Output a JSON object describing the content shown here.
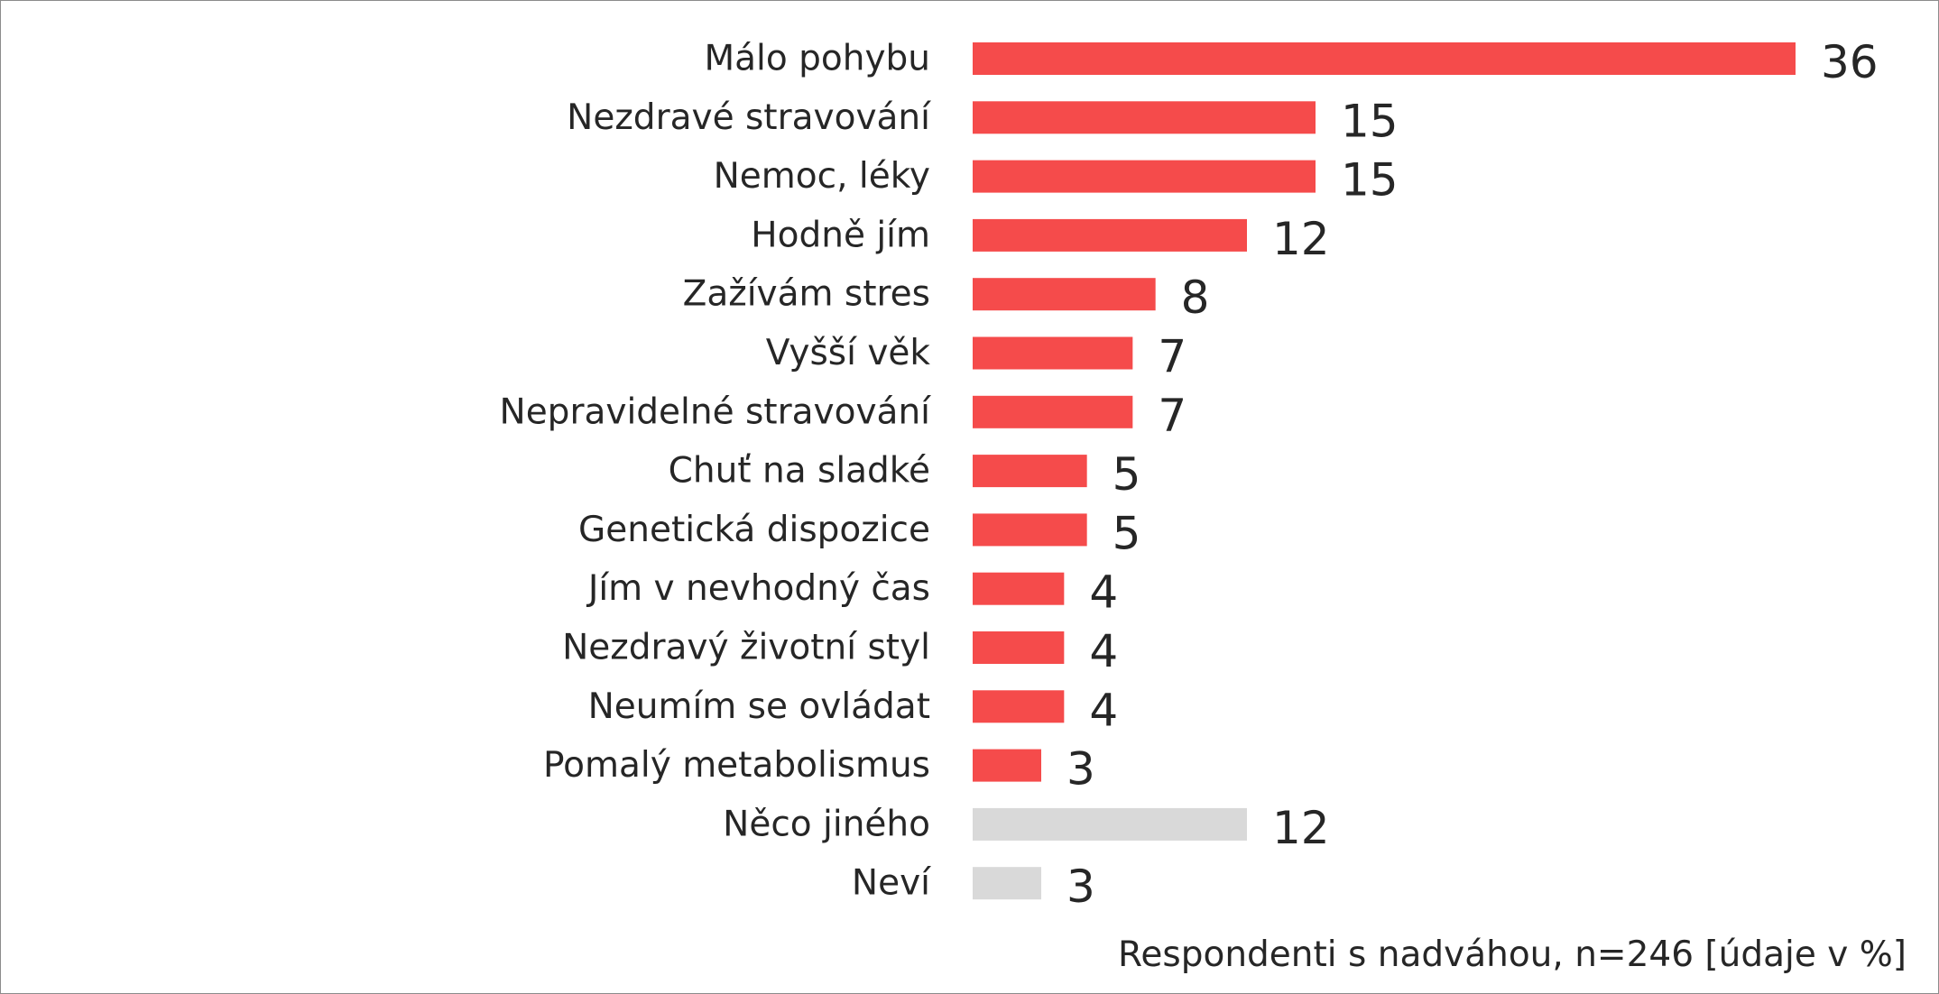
{
  "chart_data": {
    "type": "bar",
    "orientation": "horizontal",
    "categories": [
      "Málo pohybu",
      "Nezdravé stravování",
      "Nemoc, léky",
      "Hodně jím",
      "Zažívám stres",
      "Vyšší věk",
      "Nepravidelné stravování",
      "Chuť na sladké",
      "Genetická dispozice",
      "Jím v nevhodný čas",
      "Nezdravý životní styl",
      "Neumím se ovládat",
      "Pomalý metabolismus",
      "Něco jiného",
      "Neví"
    ],
    "values": [
      36,
      15,
      15,
      12,
      8,
      7,
      7,
      5,
      5,
      4,
      4,
      4,
      3,
      12,
      3
    ],
    "bar_colors": [
      "#f54b4b",
      "#f54b4b",
      "#f54b4b",
      "#f54b4b",
      "#f54b4b",
      "#f54b4b",
      "#f54b4b",
      "#f54b4b",
      "#f54b4b",
      "#f54b4b",
      "#f54b4b",
      "#f54b4b",
      "#f54b4b",
      "#d9d9d9",
      "#d9d9d9"
    ],
    "xlim": [
      0,
      36
    ],
    "grid": false,
    "legend": "none"
  },
  "footnote": "Respondenti s nadváhou, n=246 [údaje v %]"
}
